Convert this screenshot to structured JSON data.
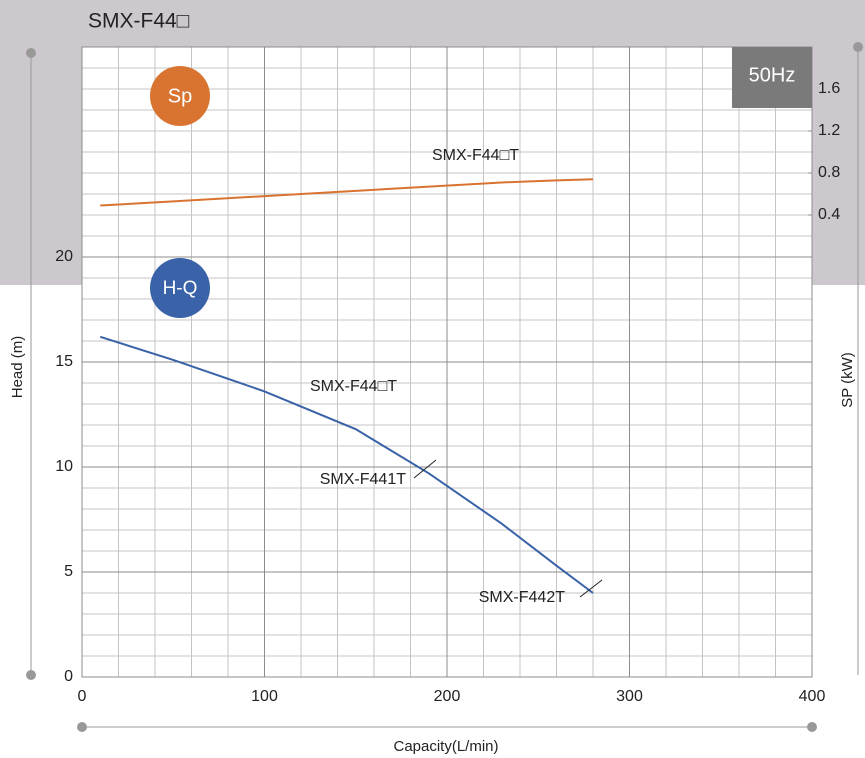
{
  "chart_data": {
    "type": "line",
    "title": "SMX-F44□",
    "xlabel": "Capacity(L/min)",
    "ylabel": "Head (m)",
    "y2label": "SP (kW)",
    "x": [
      10,
      50,
      100,
      150,
      190,
      230,
      260,
      280
    ],
    "series": [
      {
        "name": "SMX-F44□T",
        "color": "#3a62a8",
        "values": [
          16.2,
          15.1,
          13.6,
          11.8,
          9.7,
          7.3,
          5.3,
          4.0
        ]
      },
      {
        "name": "SMX-F44□T",
        "color": "#d97330",
        "axis": "y2",
        "values": [
          0.49,
          0.53,
          0.58,
          0.63,
          0.67,
          0.71,
          0.73,
          0.74
        ]
      }
    ],
    "xlim": [
      0,
      400
    ],
    "xticks": [
      0,
      100,
      200,
      300,
      400
    ],
    "ylim": [
      0,
      30
    ],
    "yticks": [
      0,
      5,
      10,
      15,
      20
    ],
    "y2lim": [
      0,
      2
    ],
    "y2ticks": [
      0.4,
      0.8,
      1.2,
      1.6
    ],
    "grid": true,
    "badges": [
      "Sp",
      "H-Q",
      "50Hz"
    ],
    "annotations": [
      "SMX-F441T",
      "SMX-F442T"
    ]
  }
}
